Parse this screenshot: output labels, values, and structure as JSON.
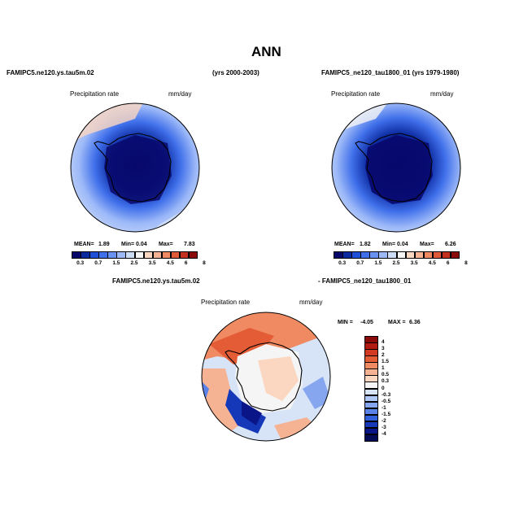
{
  "header": {
    "title": "ANN"
  },
  "panel_left": {
    "case": "FAMIPC5.ne120.ys.tau5m.02",
    "years": "(yrs 2000-2003)",
    "field": "Precipitation rate",
    "units": "mm/day",
    "mean_label": "MEAN=",
    "mean": "1.89",
    "min_label": "Min=",
    "min": "0.04",
    "max_label": "Max=",
    "max": "7.83"
  },
  "panel_right": {
    "case": "FAMIPC5_ne120_tau1800_01 (yrs 1979-1980)",
    "field": "Precipitation rate",
    "units": "mm/day",
    "mean_label": "MEAN=",
    "mean": "1.82",
    "min_label": "Min=",
    "min": "0.04",
    "max_label": "Max=",
    "max": "6.26"
  },
  "panel_diff": {
    "case_a": "FAMIPC5.ne120.ys.tau5m.02",
    "case_b": "- FAMIPC5_ne120_tau1800_01",
    "field": "Precipitation rate",
    "units": "mm/day",
    "min_label": "MIN =",
    "min": "-4.05",
    "max_label": "MAX =",
    "max": "6.36"
  },
  "colorbar_abs": {
    "labels": [
      "0.3",
      "0.7",
      "1.5",
      "2.5",
      "3.5",
      "4.5",
      "6",
      "8"
    ],
    "colors": [
      "#08086b",
      "#0c2aa0",
      "#1e4fd6",
      "#3f6fea",
      "#6a92f2",
      "#9db9f8",
      "#cddcf7",
      "#f5f5f5",
      "#fbd7c1",
      "#f6b394",
      "#ef8a62",
      "#e05a3a",
      "#c4301f",
      "#8b0a0a"
    ]
  },
  "colorbar_diff": {
    "labels": [
      "4",
      "3",
      "2",
      "1.5",
      "1",
      "0.5",
      "0.3",
      "0",
      "-0.3",
      "-0.5",
      "-1",
      "-1.5",
      "-2",
      "-3",
      "-4"
    ],
    "colors": [
      "#8b0a0a",
      "#b31b12",
      "#d23b22",
      "#e45c35",
      "#ef8a62",
      "#f6b394",
      "#fbd7c1",
      "#f5f5f5",
      "#d7e3f6",
      "#b0c8f5",
      "#86a6f0",
      "#5a82e8",
      "#3260db",
      "#1438b8",
      "#0a1688",
      "#050a55"
    ]
  }
}
